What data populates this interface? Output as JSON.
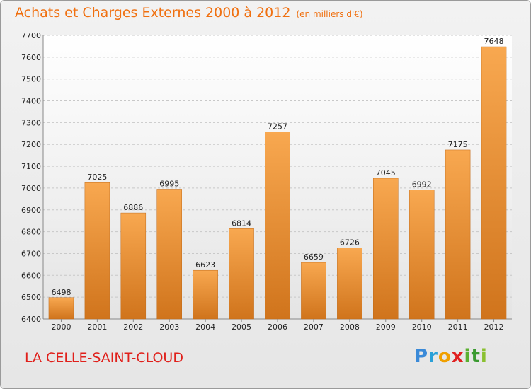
{
  "header": {
    "title": "Achats et Charges Externes 2000 à 2012",
    "unit": "(en milliers d'€)"
  },
  "footer": {
    "commune": "LA CELLE-SAINT-CLOUD",
    "logo": "Proxiti"
  },
  "chart_data": {
    "type": "bar",
    "categories": [
      "2000",
      "2001",
      "2002",
      "2003",
      "2004",
      "2005",
      "2006",
      "2007",
      "2008",
      "2009",
      "2010",
      "2011",
      "2012"
    ],
    "values": [
      6498,
      7025,
      6886,
      6995,
      6623,
      6814,
      7257,
      6659,
      6726,
      7045,
      6992,
      7175,
      7648
    ],
    "ylim": [
      6400,
      7700
    ],
    "yticks": [
      6400,
      6500,
      6600,
      6700,
      6800,
      6900,
      7000,
      7100,
      7200,
      7300,
      7400,
      7500,
      7600,
      7700
    ],
    "grid": true,
    "colors": {
      "bar_light": "#f8a850",
      "bar_dark": "#d0741c",
      "bar_edge": "#c06a18"
    }
  }
}
